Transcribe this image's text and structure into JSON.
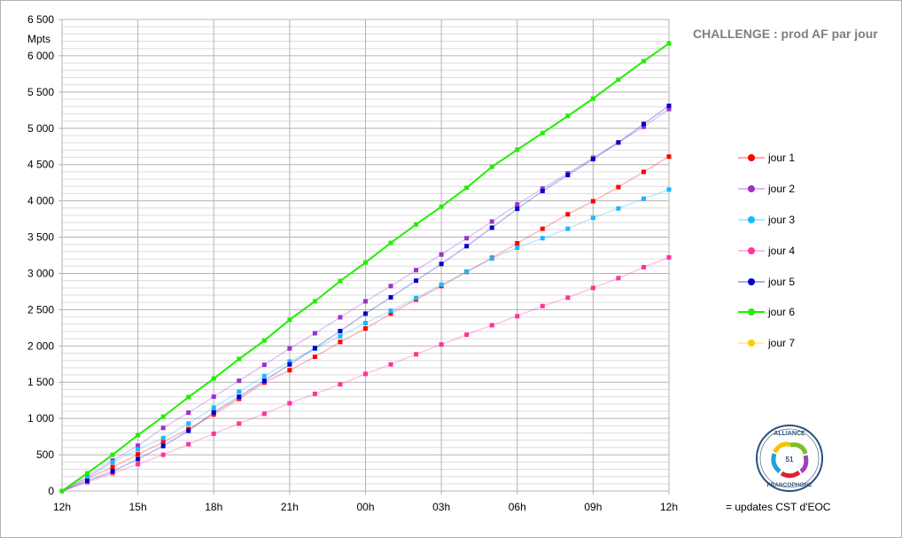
{
  "chart_data": {
    "type": "line",
    "title": "CHALLENGE : prod AF par jour",
    "ylabel": "Mpts",
    "xlabel": "",
    "ylim": [
      0,
      6500
    ],
    "y_ticks": [
      "0",
      "500",
      "1 000",
      "1 500",
      "2 000",
      "2 500",
      "3 000",
      "3 500",
      "4 000",
      "4 500",
      "5 000",
      "5 500",
      "6 000",
      "6 500"
    ],
    "y_tick_values": [
      0,
      500,
      1000,
      1500,
      2000,
      2500,
      3000,
      3500,
      4000,
      4500,
      5000,
      5500,
      6000,
      6500
    ],
    "x_ticks": [
      "12h",
      "15h",
      "18h",
      "21h",
      "00h",
      "03h",
      "06h",
      "09h",
      "12h"
    ],
    "x_hours": [
      0,
      1,
      2,
      3,
      4,
      5,
      6,
      7,
      8,
      9,
      10,
      11,
      12,
      13,
      14,
      15,
      16,
      17,
      18,
      19,
      20,
      21,
      22,
      23,
      24
    ],
    "grid": true,
    "legend_position": "right",
    "series": [
      {
        "name": "jour 1",
        "color": "#ff0000",
        "values": [
          0,
          170,
          330,
          505,
          675,
          855,
          1055,
          1270,
          1495,
          1665,
          1850,
          2055,
          2240,
          2445,
          2640,
          2825,
          3020,
          3215,
          3415,
          3615,
          3815,
          3995,
          4190,
          4400,
          4610
        ]
      },
      {
        "name": "jour 2",
        "color": "#9933cc",
        "values": [
          0,
          200,
          420,
          625,
          870,
          1080,
          1300,
          1520,
          1740,
          1965,
          2175,
          2395,
          2615,
          2825,
          3045,
          3260,
          3485,
          3715,
          3950,
          4170,
          4380,
          4595,
          4805,
          5020,
          5265
        ]
      },
      {
        "name": "jour 3",
        "color": "#1ab8ff",
        "values": [
          0,
          180,
          395,
          575,
          730,
          930,
          1150,
          1370,
          1585,
          1785,
          1960,
          2135,
          2315,
          2485,
          2660,
          2845,
          3025,
          3205,
          3355,
          3485,
          3615,
          3765,
          3895,
          4030,
          4155
        ]
      },
      {
        "name": "jour 4",
        "color": "#ff3399",
        "values": [
          0,
          120,
          245,
          370,
          500,
          645,
          790,
          930,
          1065,
          1210,
          1340,
          1470,
          1615,
          1745,
          1885,
          2020,
          2155,
          2285,
          2410,
          2550,
          2665,
          2800,
          2935,
          3085,
          3220
        ]
      },
      {
        "name": "jour 5",
        "color": "#0000cc",
        "values": [
          0,
          140,
          270,
          440,
          620,
          830,
          1085,
          1300,
          1520,
          1745,
          1970,
          2205,
          2445,
          2670,
          2900,
          3130,
          3375,
          3630,
          3890,
          4135,
          4355,
          4575,
          4805,
          5060,
          5310
        ]
      },
      {
        "name": "jour 6",
        "color": "#22ee00",
        "values": [
          0,
          245,
          500,
          770,
          1025,
          1295,
          1550,
          1820,
          2075,
          2360,
          2615,
          2895,
          3150,
          3420,
          3675,
          3920,
          4180,
          4470,
          4705,
          4935,
          5170,
          5410,
          5670,
          5925,
          6170
        ]
      },
      {
        "name": "jour 7",
        "color": "#ffcc00",
        "values": []
      }
    ]
  },
  "logo": {
    "text_top": "ALLIANCE",
    "number": "51",
    "text_bottom": "FRANCOPHONE"
  },
  "note": "= updates CST d'EOC"
}
